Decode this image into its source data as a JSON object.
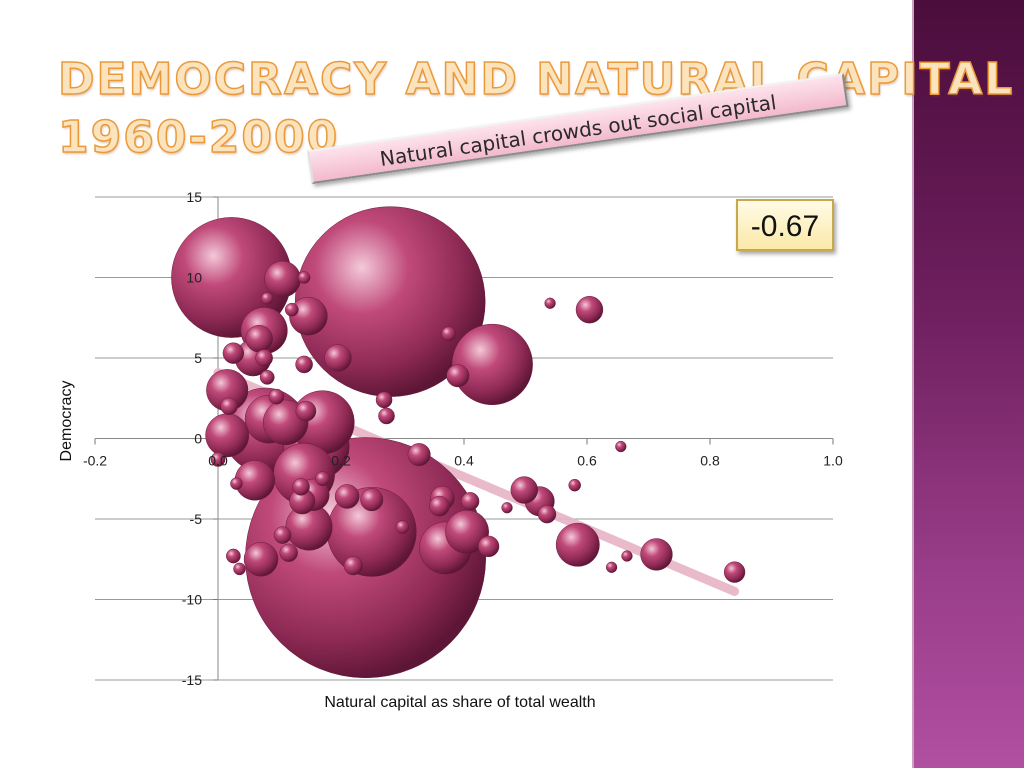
{
  "slide": {
    "title_line1": "DEMOCRACY AND NATURAL CAPITAL",
    "title_line2": "1960-2000",
    "callout": "Natural capital crowds out social capital",
    "correlation": "-0.67"
  },
  "colors": {
    "title_fill": "#fbe3bd",
    "title_outline": "#ea9a3a",
    "bubble": "#a63a66",
    "trendline": "#e7b4c5",
    "side_band": "#6e1f5e"
  },
  "chart_data": {
    "type": "scatter",
    "title": "",
    "xlabel": "Natural capital as share of total wealth",
    "ylabel": "Democracy",
    "xlim": [
      -0.2,
      1.0
    ],
    "ylim": [
      -15,
      15
    ],
    "x_ticks": [
      "-0.2",
      "0.0",
      "0.2",
      "0.4",
      "0.6",
      "0.8",
      "1.0"
    ],
    "y_ticks": [
      "15",
      "10",
      "5",
      "0",
      "-5",
      "-10",
      "-15"
    ],
    "grid": "horizontal",
    "trendline": {
      "x": [
        0.0,
        0.84
      ],
      "y": [
        4.1,
        -9.5
      ]
    },
    "points": [
      {
        "x": 0.022,
        "y": 10.0,
        "size": 1000
      },
      {
        "x": 0.28,
        "y": 8.5,
        "size": 2500
      },
      {
        "x": 0.24,
        "y": -7.4,
        "size": 4000
      },
      {
        "x": 0.446,
        "y": 4.6,
        "size": 450
      },
      {
        "x": 0.25,
        "y": -5.8,
        "size": 550
      },
      {
        "x": 0.077,
        "y": 0.5,
        "size": 500
      },
      {
        "x": 0.17,
        "y": 1.0,
        "size": 280
      },
      {
        "x": 0.16,
        "y": -0.5,
        "size": 300
      },
      {
        "x": 0.14,
        "y": -2.2,
        "size": 260
      },
      {
        "x": 0.075,
        "y": 6.7,
        "size": 150
      },
      {
        "x": 0.015,
        "y": 3.0,
        "size": 120
      },
      {
        "x": 0.015,
        "y": 0.2,
        "size": 130
      },
      {
        "x": 0.105,
        "y": 9.9,
        "size": 90
      },
      {
        "x": 0.147,
        "y": 7.6,
        "size": 100
      },
      {
        "x": 0.057,
        "y": 5.0,
        "size": 90
      },
      {
        "x": 0.067,
        "y": 6.2,
        "size": 50
      },
      {
        "x": 0.083,
        "y": 1.2,
        "size": 160
      },
      {
        "x": 0.11,
        "y": 1.0,
        "size": 140
      },
      {
        "x": 0.148,
        "y": -5.5,
        "size": 150
      },
      {
        "x": 0.06,
        "y": -2.6,
        "size": 110
      },
      {
        "x": 0.07,
        "y": -7.5,
        "size": 80
      },
      {
        "x": 0.155,
        "y": -3.5,
        "size": 70
      },
      {
        "x": 0.137,
        "y": -3.9,
        "size": 45
      },
      {
        "x": 0.195,
        "y": 5.0,
        "size": 50
      },
      {
        "x": 0.37,
        "y": -6.8,
        "size": 190
      },
      {
        "x": 0.405,
        "y": -5.8,
        "size": 130
      },
      {
        "x": 0.585,
        "y": -6.6,
        "size": 130
      },
      {
        "x": 0.713,
        "y": -7.2,
        "size": 70
      },
      {
        "x": 0.604,
        "y": 8.0,
        "size": 50
      },
      {
        "x": 0.498,
        "y": -3.2,
        "size": 50
      },
      {
        "x": 0.523,
        "y": -3.9,
        "size": 60
      },
      {
        "x": 0.365,
        "y": -3.7,
        "size": 40
      },
      {
        "x": 0.327,
        "y": -1.0,
        "size": 35
      },
      {
        "x": 0.39,
        "y": 3.9,
        "size": 35
      },
      {
        "x": 0.21,
        "y": -3.6,
        "size": 40
      },
      {
        "x": 0.25,
        "y": -3.8,
        "size": 35
      },
      {
        "x": 0.44,
        "y": -6.7,
        "size": 30
      },
      {
        "x": 0.84,
        "y": -8.3,
        "size": 30
      },
      {
        "x": 0.025,
        "y": 5.3,
        "size": 30
      },
      {
        "x": 0.075,
        "y": 5.0,
        "size": 20
      },
      {
        "x": 0.018,
        "y": 2.0,
        "size": 20
      },
      {
        "x": 0.143,
        "y": 1.7,
        "size": 28
      },
      {
        "x": 0.14,
        "y": 4.6,
        "size": 20
      },
      {
        "x": 0.274,
        "y": 1.4,
        "size": 18
      },
      {
        "x": 0.27,
        "y": 2.4,
        "size": 18
      },
      {
        "x": 0.375,
        "y": 6.5,
        "size": 14
      },
      {
        "x": 0.095,
        "y": 2.6,
        "size": 16
      },
      {
        "x": 0.08,
        "y": 3.8,
        "size": 14
      },
      {
        "x": 0.105,
        "y": -6.0,
        "size": 20
      },
      {
        "x": 0.115,
        "y": -7.1,
        "size": 22
      },
      {
        "x": 0.135,
        "y": -3.0,
        "size": 20
      },
      {
        "x": 0.36,
        "y": -4.2,
        "size": 28
      },
      {
        "x": 0.41,
        "y": -3.9,
        "size": 22
      },
      {
        "x": 0.535,
        "y": -4.7,
        "size": 22
      },
      {
        "x": 0.22,
        "y": -7.9,
        "size": 24
      },
      {
        "x": 0.025,
        "y": -7.3,
        "size": 14
      },
      {
        "x": 0.035,
        "y": -8.1,
        "size": 10
      },
      {
        "x": 0.03,
        "y": -2.8,
        "size": 10
      },
      {
        "x": 0.12,
        "y": 8.0,
        "size": 12
      },
      {
        "x": 0.14,
        "y": 10.0,
        "size": 10
      },
      {
        "x": 0.08,
        "y": 8.7,
        "size": 10
      },
      {
        "x": 0.54,
        "y": 8.4,
        "size": 8
      },
      {
        "x": 0.655,
        "y": -0.5,
        "size": 8
      },
      {
        "x": 0.58,
        "y": -2.9,
        "size": 10
      },
      {
        "x": 0.47,
        "y": -4.3,
        "size": 8
      },
      {
        "x": 0.64,
        "y": -8.0,
        "size": 8
      },
      {
        "x": 0.665,
        "y": -7.3,
        "size": 8
      },
      {
        "x": 0.0,
        "y": -1.3,
        "size": 14
      },
      {
        "x": 0.17,
        "y": -2.5,
        "size": 14
      },
      {
        "x": 0.3,
        "y": -5.5,
        "size": 12
      }
    ]
  }
}
